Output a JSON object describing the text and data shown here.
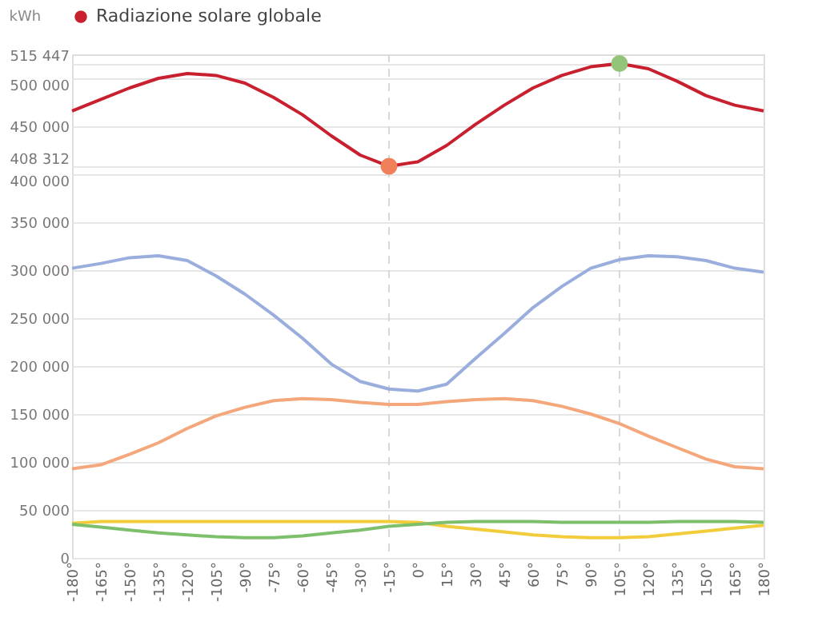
{
  "chart_data": {
    "type": "line",
    "ylabel": "kWh",
    "categories": [
      "-180°",
      "-165°",
      "-150°",
      "-135°",
      "-120°",
      "-105°",
      "-90°",
      "-75°",
      "-60°",
      "-45°",
      "-30°",
      "-15°",
      "0°",
      "15°",
      "30°",
      "45°",
      "60°",
      "75°",
      "90°",
      "105°",
      "120°",
      "135°",
      "150°",
      "165°",
      "180°"
    ],
    "series": [
      {
        "name": "Radiazione solare globale",
        "color": "#c8202f",
        "values": [
          466000,
          478000,
          490000,
          500000,
          505000,
          503000,
          495000,
          480000,
          462000,
          440000,
          420000,
          408312,
          413000,
          430000,
          452000,
          472000,
          490000,
          503000,
          512000,
          515447,
          510000,
          497000,
          482000,
          472000,
          466000
        ]
      },
      {
        "color": "#9aaedd",
        "values": [
          302000,
          307000,
          313000,
          315000,
          310000,
          294000,
          275000,
          253000,
          229000,
          202000,
          184000,
          176000,
          174000,
          181000,
          208000,
          234000,
          261000,
          283000,
          302000,
          311000,
          315000,
          314000,
          310000,
          302000,
          298000
        ]
      },
      {
        "color": "#f4a77a",
        "values": [
          93000,
          97000,
          108000,
          120000,
          135000,
          148000,
          157000,
          164000,
          166000,
          165000,
          162000,
          160000,
          160000,
          163000,
          165000,
          166000,
          164000,
          158000,
          150000,
          140000,
          127000,
          115000,
          103000,
          95000,
          93000
        ]
      },
      {
        "color": "#f2cc3a",
        "values": [
          36000,
          38000,
          38000,
          38000,
          38000,
          38000,
          38000,
          38000,
          38000,
          38000,
          38000,
          38000,
          37000,
          33000,
          30000,
          27000,
          24000,
          22000,
          21000,
          21000,
          22000,
          25000,
          28000,
          31000,
          34000
        ]
      },
      {
        "color": "#7dbf6a",
        "values": [
          35000,
          32000,
          29000,
          26000,
          24000,
          22000,
          21000,
          21000,
          23000,
          26000,
          29000,
          33000,
          35000,
          37000,
          38000,
          38000,
          38000,
          37000,
          37000,
          37000,
          37000,
          38000,
          38000,
          38000,
          37000
        ]
      },
      {
        "type": "scatter",
        "marker": "circle",
        "x": [
          "-15°",
          "105°"
        ],
        "values": [
          408312,
          515447
        ],
        "colors": [
          "#f0805a",
          "#94c47a"
        ]
      }
    ],
    "ylim": [
      0,
      525000
    ],
    "yticks": [
      {
        "value": 0,
        "label": "0"
      },
      {
        "value": 50000,
        "label": "50 000"
      },
      {
        "value": 100000,
        "label": "100 000"
      },
      {
        "value": 150000,
        "label": "150 000"
      },
      {
        "value": 200000,
        "label": "200 000"
      },
      {
        "value": 250000,
        "label": "250 000"
      },
      {
        "value": 300000,
        "label": "300 000"
      },
      {
        "value": 350000,
        "label": "350 000"
      },
      {
        "value": 400000,
        "label": "400 000"
      },
      {
        "value": 408312,
        "label": "408 312"
      },
      {
        "value": 450000,
        "label": "450 000"
      },
      {
        "value": 500000,
        "label": "500 000"
      },
      {
        "value": 515447,
        "label": "515 447"
      }
    ],
    "ref_lines": [
      {
        "axis": "x",
        "value": "-15°",
        "color": "#d8d8d8",
        "line_style": "dashed"
      },
      {
        "axis": "x",
        "value": "105°",
        "color": "#d8d8d8",
        "line_style": "dashed"
      }
    ],
    "grid": "y",
    "legend": "top",
    "marker": "none",
    "line_style": "solid"
  }
}
